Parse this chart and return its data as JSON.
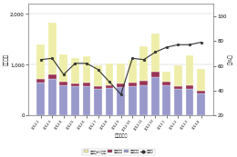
{
  "months": [
    "2012.2",
    "2012.3",
    "2012.4",
    "2012.5",
    "2012.6",
    "2012.7",
    "2012.8",
    "2012.9",
    "2012.10",
    "2012.11",
    "2012.12",
    "2013.1",
    "2013.2",
    "2013.3",
    "2013.4"
  ],
  "eizo": [
    650,
    720,
    600,
    570,
    580,
    520,
    540,
    560,
    580,
    600,
    750,
    600,
    520,
    530,
    430
  ],
  "onsei": [
    70,
    85,
    65,
    60,
    60,
    55,
    55,
    65,
    65,
    75,
    110,
    70,
    55,
    65,
    50
  ],
  "game_vc": [
    680,
    1020,
    530,
    500,
    530,
    420,
    430,
    400,
    450,
    680,
    760,
    190,
    420,
    580,
    440
  ],
  "yoy": [
    65,
    66,
    53,
    62,
    62,
    57,
    47,
    37,
    66,
    65,
    71,
    75,
    77,
    77,
    79
  ],
  "eizo_color": "#9999cc",
  "onsei_color": "#993355",
  "game_vc_color": "#eeeeaa",
  "yoy_color": "#333333",
  "left_label": "（億円）",
  "right_label": "（%）",
  "xlabel": "（年・月）",
  "ylim_left": [
    0,
    2200
  ],
  "ylim_right": [
    20,
    110
  ],
  "yticks_left": [
    0,
    1000,
    2000
  ],
  "yticks_right": [
    20,
    40,
    60,
    80,
    100
  ],
  "legend_labels": [
    "ゲームVC機器",
    "音声機器",
    "映像機器",
    "前年比"
  ],
  "bg_color": "#ffffff"
}
